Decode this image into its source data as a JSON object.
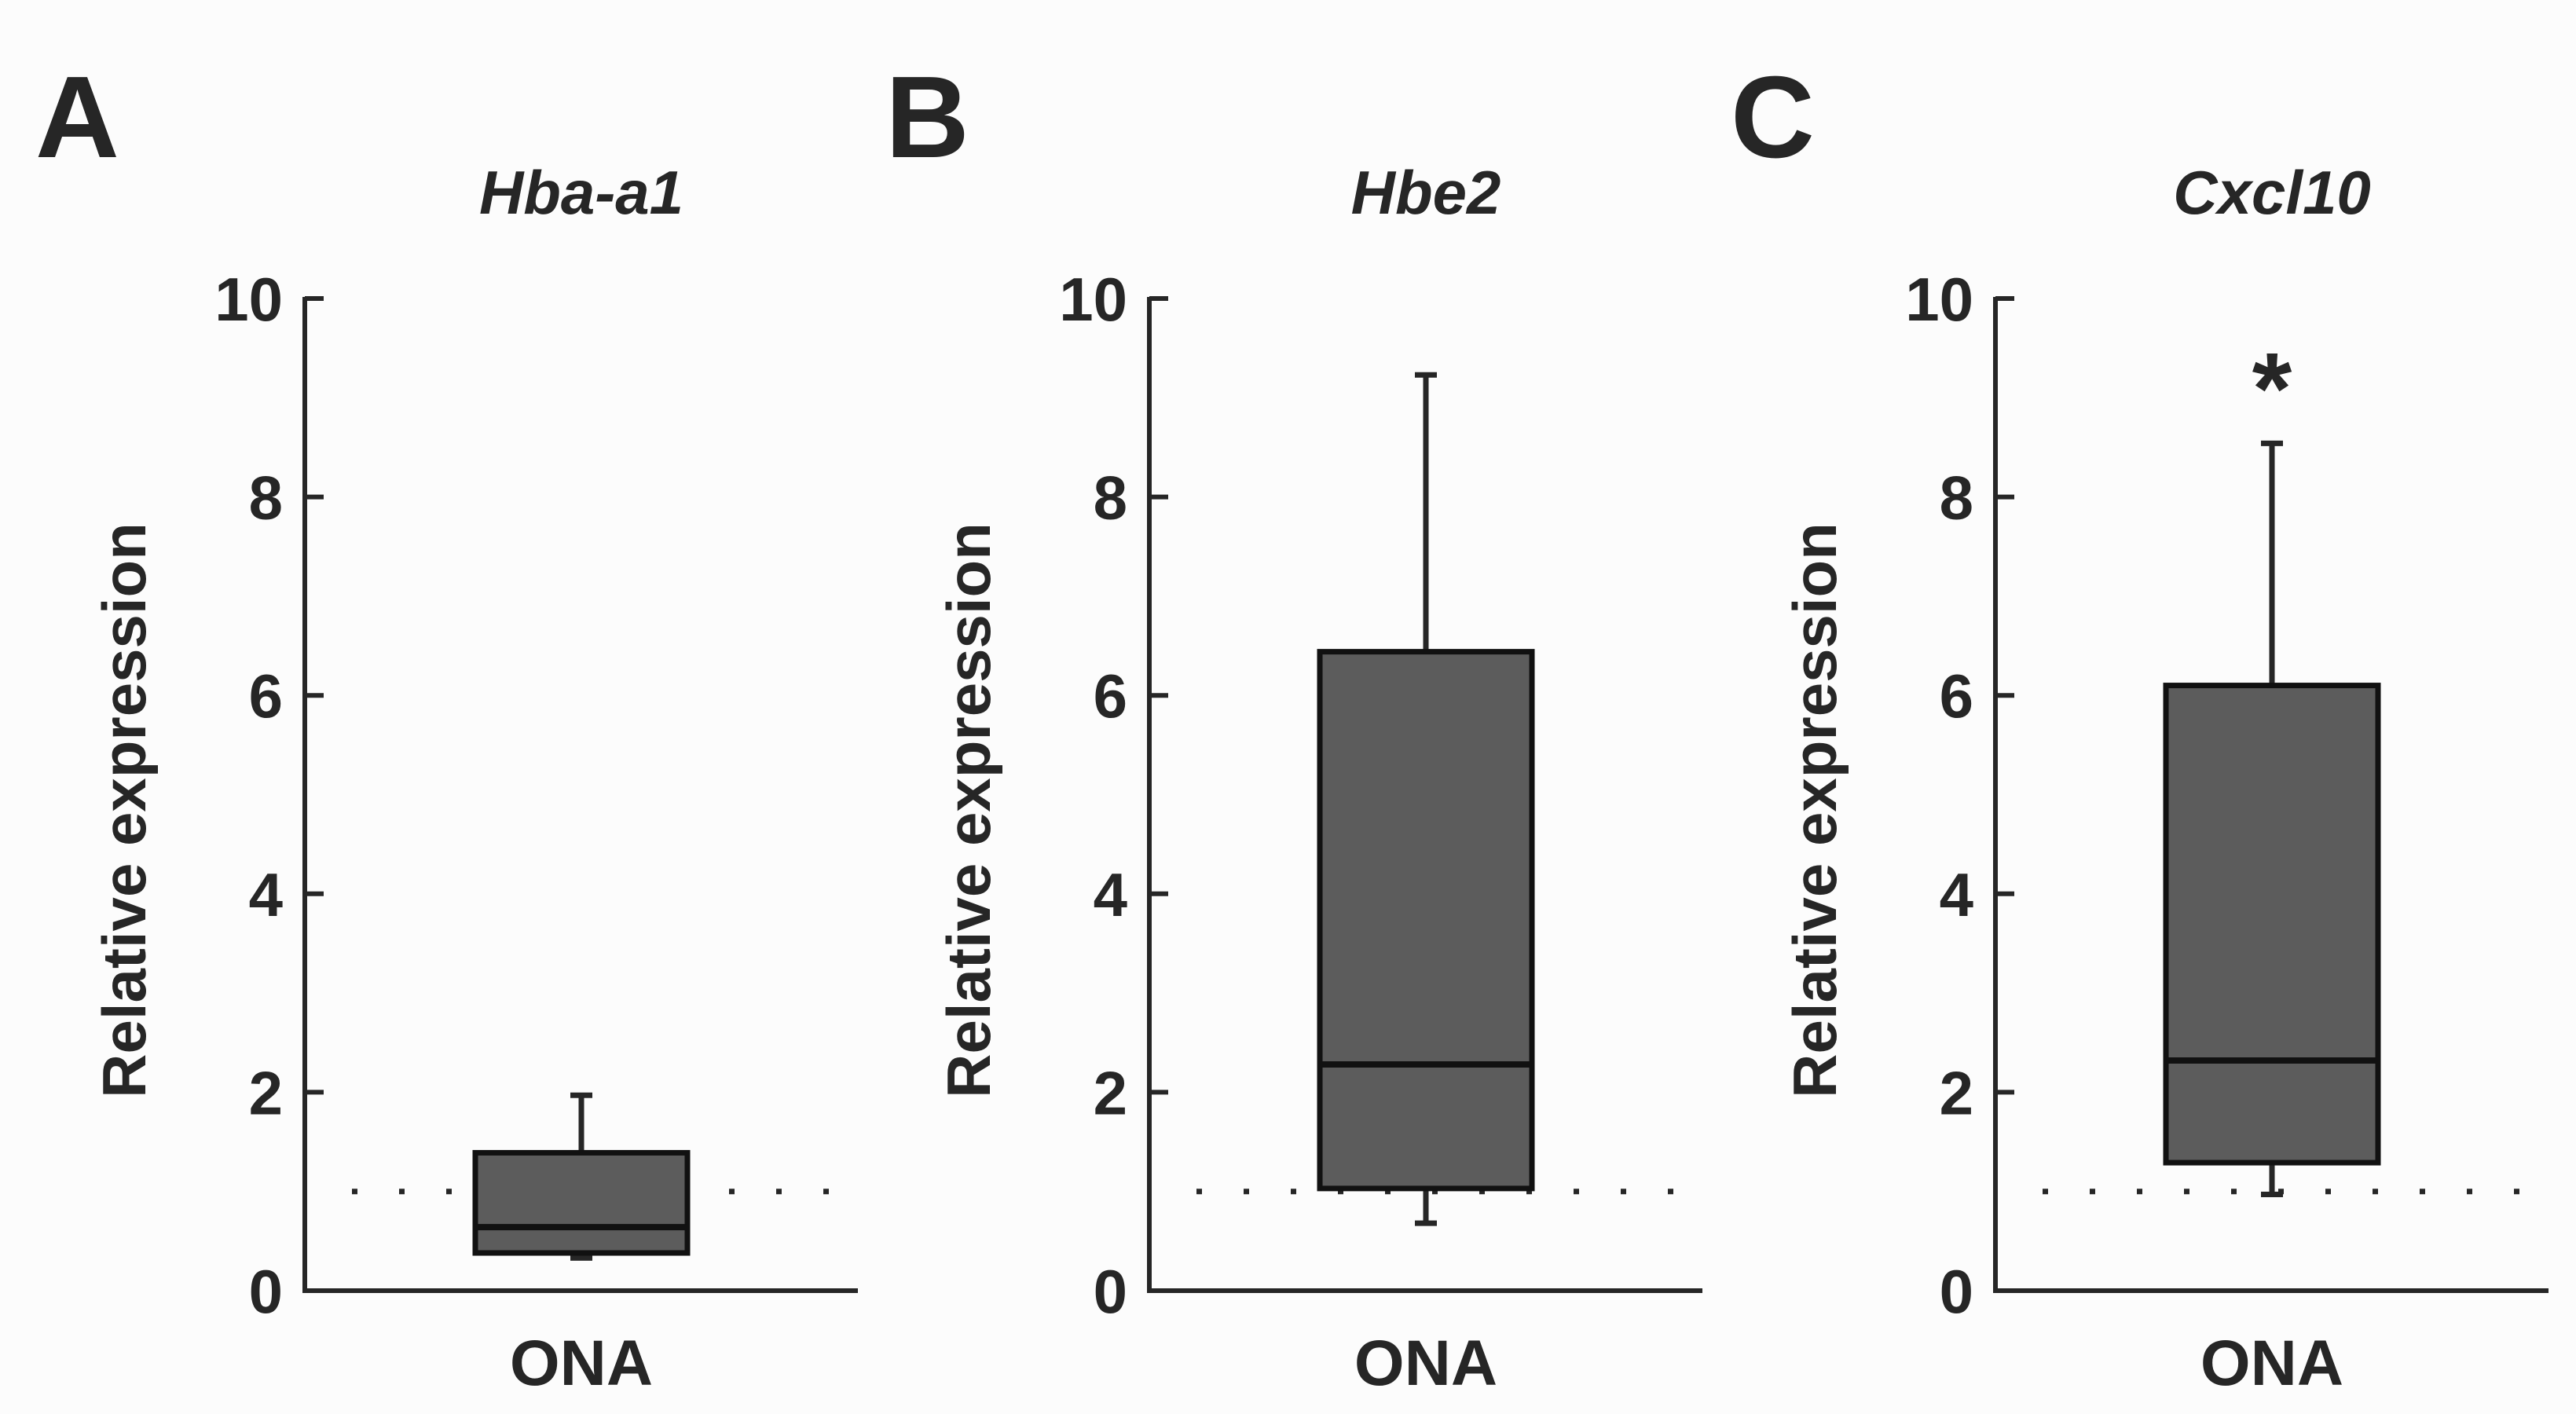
{
  "figure": {
    "background": "#fcfcfc",
    "ink_color": "#262626",
    "box_fill": "#5c5c5c"
  },
  "chart_data": [
    {
      "type": "box",
      "panel": "A",
      "title": "Hba-a1",
      "xlabel": "",
      "ylabel": "Relative expression",
      "categories": [
        "ONA"
      ],
      "ylim": [
        0,
        10
      ],
      "yticks": [
        "0",
        "2",
        "4",
        "6",
        "8",
        "10"
      ],
      "reference_line": 1,
      "boxes": [
        {
          "category": "ONA",
          "whisker_low": 0.33,
          "q1": 0.38,
          "median": 0.64,
          "q3": 1.39,
          "whisker_high": 1.97
        }
      ],
      "annotation": ""
    },
    {
      "type": "box",
      "panel": "B",
      "title": "Hbe2",
      "xlabel": "",
      "ylabel": "Relative expression",
      "categories": [
        "ONA"
      ],
      "ylim": [
        0,
        10
      ],
      "yticks": [
        "0",
        "2",
        "4",
        "6",
        "8",
        "10"
      ],
      "reference_line": 1,
      "boxes": [
        {
          "category": "ONA",
          "whisker_low": 0.68,
          "q1": 1.03,
          "median": 2.28,
          "q3": 6.44,
          "whisker_high": 9.23
        }
      ],
      "annotation": ""
    },
    {
      "type": "box",
      "panel": "C",
      "title": "Cxcl10",
      "xlabel": "",
      "ylabel": "Relative expression",
      "categories": [
        "ONA"
      ],
      "ylim": [
        0,
        10
      ],
      "yticks": [
        "0",
        "2",
        "4",
        "6",
        "8",
        "10"
      ],
      "reference_line": 1,
      "boxes": [
        {
          "category": "ONA",
          "whisker_low": 0.97,
          "q1": 1.29,
          "median": 2.32,
          "q3": 6.1,
          "whisker_high": 8.54
        }
      ],
      "annotation": "*"
    }
  ]
}
